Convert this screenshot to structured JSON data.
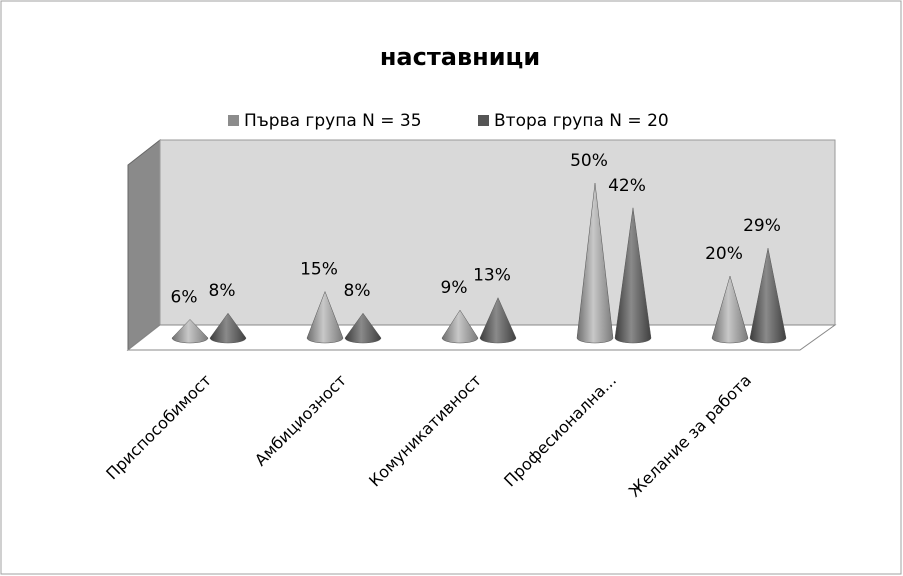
{
  "chart_data": {
    "type": "cone3d",
    "title": "наставници",
    "categories": [
      "Приспособимост",
      "Амбициозност",
      "Комуникативност",
      "Професионална...",
      "Желание за работа"
    ],
    "series": [
      {
        "name": "Първа група N = 35",
        "color": "#8c8c8c",
        "values": [
          6,
          15,
          9,
          50,
          20
        ],
        "value_labels": [
          "6%",
          "15%",
          "9%",
          "50%",
          "20%"
        ]
      },
      {
        "name": "Втора група N = 20",
        "color": "#555555",
        "values": [
          8,
          8,
          13,
          42,
          29
        ],
        "value_labels": [
          "8%",
          "8%",
          "13%",
          "42%",
          "29%"
        ]
      }
    ],
    "legend": "top"
  }
}
